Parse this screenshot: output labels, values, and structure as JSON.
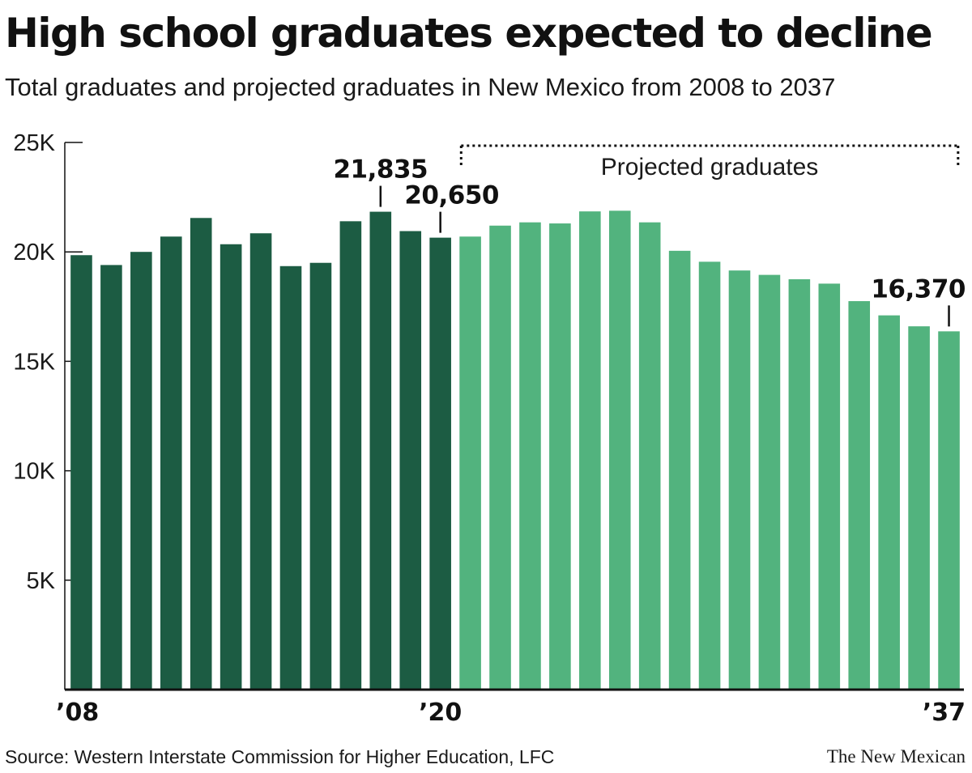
{
  "header": {
    "title": "High school graduates expected to decline",
    "subtitle": "Total graduates and projected graduates in New Mexico from 2008 to 2037"
  },
  "footer": {
    "source": "Source: Western Interstate Commission for Higher Education, LFC",
    "credit": "The New Mexican"
  },
  "colors": {
    "actual": "#1c5c43",
    "projected": "#52b37e",
    "axis": "#111111"
  },
  "chart_data": {
    "type": "bar",
    "title": "High school graduates expected to decline",
    "subtitle": "Total graduates and projected graduates in New Mexico from 2008 to 2037",
    "x": [
      2008,
      2009,
      2010,
      2011,
      2012,
      2013,
      2014,
      2015,
      2016,
      2017,
      2018,
      2019,
      2020,
      2021,
      2022,
      2023,
      2024,
      2025,
      2026,
      2027,
      2028,
      2029,
      2030,
      2031,
      2032,
      2033,
      2034,
      2035,
      2036,
      2037
    ],
    "series": [
      {
        "name": "",
        "values": [
          19850,
          19400,
          20000,
          20700,
          21550,
          20350,
          20850,
          19350,
          19500,
          21400,
          21835,
          20950,
          20650,
          20700,
          21200,
          21350,
          21300,
          21850,
          21880,
          21350,
          20050,
          19550,
          19150,
          18950,
          18750,
          18550,
          17750,
          17100,
          16600,
          16370
        ]
      }
    ],
    "projected_from": 2021,
    "ylim": [
      0,
      25000
    ],
    "yticks": [
      {
        "value": 5000,
        "label": "5K"
      },
      {
        "value": 10000,
        "label": "10K"
      },
      {
        "value": 15000,
        "label": "15K"
      },
      {
        "value": 20000,
        "label": "20K"
      },
      {
        "value": 25000,
        "label": "25K"
      }
    ],
    "xtick_labels": [
      {
        "year": 2008,
        "label": "’08"
      },
      {
        "year": 2020,
        "label": "’20"
      },
      {
        "year": 2037,
        "label": "’37"
      }
    ],
    "annotations": [
      {
        "year": 2018,
        "value": 21835,
        "text": "21,835"
      },
      {
        "year": 2020,
        "value": 20650,
        "text": "20,650"
      },
      {
        "year": 2037,
        "value": 16370,
        "text": "16,370"
      }
    ],
    "bracket": {
      "from_year": 2021,
      "to_year": 2037,
      "text": "Projected graduates"
    },
    "xlabel": "",
    "ylabel": "",
    "grid": false,
    "legend": "none"
  }
}
